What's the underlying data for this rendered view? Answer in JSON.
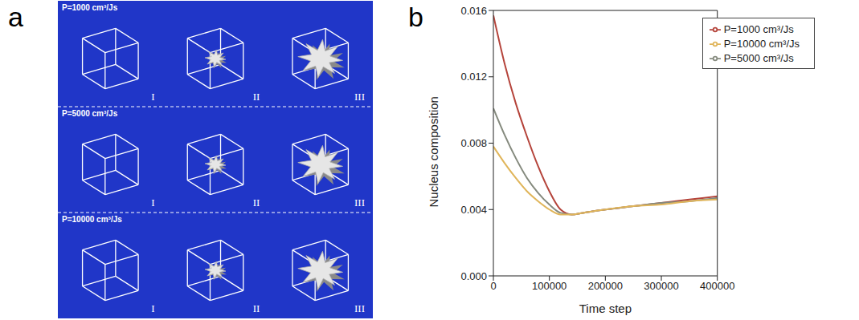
{
  "panels": {
    "a": {
      "letter": "a",
      "rows": [
        {
          "label": "P=1000 cm³/Js",
          "stages": [
            "I",
            "II",
            "III"
          ]
        },
        {
          "label": "P=5000 cm³/Js",
          "stages": [
            "I",
            "II",
            "III"
          ]
        },
        {
          "label": "P=10000 cm³/Js",
          "stages": [
            "I",
            "II",
            "III"
          ]
        }
      ]
    },
    "b": {
      "letter": "b"
    }
  },
  "chart_data": {
    "type": "line",
    "x_label": "Time step",
    "y_label": "Nucleus composition",
    "x": [
      0,
      20000,
      40000,
      60000,
      80000,
      100000,
      120000,
      140000,
      160000,
      200000,
      250000,
      300000,
      350000,
      400000
    ],
    "series": [
      {
        "name": "P=1000 cm³/Js",
        "color": "#b5443b",
        "values": [
          0.0157,
          0.0128,
          0.0104,
          0.0084,
          0.0066,
          0.0051,
          0.004,
          0.0037,
          0.0038,
          0.004,
          0.0042,
          0.0044,
          0.0046,
          0.0048
        ]
      },
      {
        "name": "P=5000 cm³/Js",
        "color": "#858a7e",
        "values": [
          0.0101,
          0.0085,
          0.0071,
          0.0059,
          0.005,
          0.0043,
          0.0038,
          0.0037,
          0.0038,
          0.004,
          0.0042,
          0.0044,
          0.0045,
          0.0047
        ]
      },
      {
        "name": "P=10000 cm³/Js",
        "color": "#e0b55a",
        "values": [
          0.0078,
          0.0068,
          0.0059,
          0.0051,
          0.0045,
          0.004,
          0.0037,
          0.0037,
          0.0038,
          0.004,
          0.0042,
          0.0043,
          0.0045,
          0.0046
        ]
      }
    ],
    "xlim": [
      0,
      400000
    ],
    "xticks": [
      0,
      100000,
      200000,
      300000,
      400000
    ],
    "ylim": [
      0,
      0.016
    ],
    "yticks": [
      {
        "value": 0,
        "label": "0.000"
      },
      0.004,
      0.008,
      0.012,
      0.016
    ],
    "grid": false,
    "legend": "upper right"
  }
}
